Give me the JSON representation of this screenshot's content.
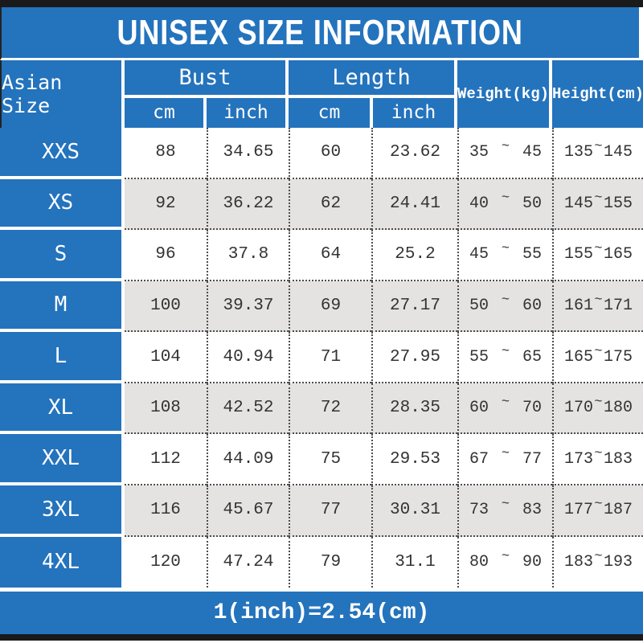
{
  "title": "UNISEX SIZE INFORMATION",
  "colors": {
    "accent_blue": "#2473bd",
    "bar_dark": "#1a1a1a",
    "row_alt_gray": "#e5e3e1",
    "data_text": "#333333"
  },
  "table": {
    "headers": {
      "asian_size": "Asian Size",
      "bust": "Bust",
      "length": "Length",
      "weight": "Weight(kg)",
      "height": "Height(cm)",
      "unit_cm": "cm",
      "unit_inch": "inch"
    },
    "range_separator": "~",
    "rows": [
      {
        "size": "XXS",
        "bust_cm": "88",
        "bust_inch": "34.65",
        "length_cm": "60",
        "length_inch": "23.62",
        "weight": {
          "min": "35",
          "max": "45"
        },
        "height": {
          "min": "135",
          "max": "145"
        }
      },
      {
        "size": "XS",
        "bust_cm": "92",
        "bust_inch": "36.22",
        "length_cm": "62",
        "length_inch": "24.41",
        "weight": {
          "min": "40",
          "max": "50"
        },
        "height": {
          "min": "145",
          "max": "155"
        }
      },
      {
        "size": "S",
        "bust_cm": "96",
        "bust_inch": "37.8",
        "length_cm": "64",
        "length_inch": "25.2",
        "weight": {
          "min": "45",
          "max": "55"
        },
        "height": {
          "min": "155",
          "max": "165"
        }
      },
      {
        "size": "M",
        "bust_cm": "100",
        "bust_inch": "39.37",
        "length_cm": "69",
        "length_inch": "27.17",
        "weight": {
          "min": "50",
          "max": "60"
        },
        "height": {
          "min": "161",
          "max": "171"
        }
      },
      {
        "size": "L",
        "bust_cm": "104",
        "bust_inch": "40.94",
        "length_cm": "71",
        "length_inch": "27.95",
        "weight": {
          "min": "55",
          "max": "65"
        },
        "height": {
          "min": "165",
          "max": "175"
        }
      },
      {
        "size": "XL",
        "bust_cm": "108",
        "bust_inch": "42.52",
        "length_cm": "72",
        "length_inch": "28.35",
        "weight": {
          "min": "60",
          "max": "70"
        },
        "height": {
          "min": "170",
          "max": "180"
        }
      },
      {
        "size": "XXL",
        "bust_cm": "112",
        "bust_inch": "44.09",
        "length_cm": "75",
        "length_inch": "29.53",
        "weight": {
          "min": "67",
          "max": "77"
        },
        "height": {
          "min": "173",
          "max": "183"
        }
      },
      {
        "size": "3XL",
        "bust_cm": "116",
        "bust_inch": "45.67",
        "length_cm": "77",
        "length_inch": "30.31",
        "weight": {
          "min": "73",
          "max": "83"
        },
        "height": {
          "min": "177",
          "max": "187"
        }
      },
      {
        "size": "4XL",
        "bust_cm": "120",
        "bust_inch": "47.24",
        "length_cm": "79",
        "length_inch": "31.1",
        "weight": {
          "min": "80",
          "max": "90"
        },
        "height": {
          "min": "183",
          "max": "193"
        }
      }
    ]
  },
  "footer": {
    "conversion_note": "1(inch)=2.54(cm)"
  },
  "chart_data": {
    "type": "table",
    "title": "UNISEX SIZE INFORMATION",
    "columns": [
      "Asian Size",
      "Bust cm",
      "Bust inch",
      "Length cm",
      "Length inch",
      "Weight(kg)",
      "Height(cm)"
    ],
    "rows": [
      [
        "XXS",
        88,
        34.65,
        60,
        23.62,
        "35~45",
        "135~145"
      ],
      [
        "XS",
        92,
        36.22,
        62,
        24.41,
        "40~50",
        "145~155"
      ],
      [
        "S",
        96,
        37.8,
        64,
        25.2,
        "45~55",
        "155~165"
      ],
      [
        "M",
        100,
        39.37,
        69,
        27.17,
        "50~60",
        "161~171"
      ],
      [
        "L",
        104,
        40.94,
        71,
        27.95,
        "55~65",
        "165~175"
      ],
      [
        "XL",
        108,
        42.52,
        72,
        28.35,
        "60~70",
        "170~180"
      ],
      [
        "XXL",
        112,
        44.09,
        75,
        29.53,
        "67~77",
        "173~183"
      ],
      [
        "3XL",
        116,
        45.67,
        77,
        30.31,
        "73~83",
        "177~187"
      ],
      [
        "4XL",
        120,
        47.24,
        79,
        31.1,
        "80~90",
        "183~193"
      ]
    ],
    "footnote": "1(inch)=2.54(cm)",
    "layout": {
      "header_background": "#2473bd",
      "alternating_rows": true
    }
  }
}
